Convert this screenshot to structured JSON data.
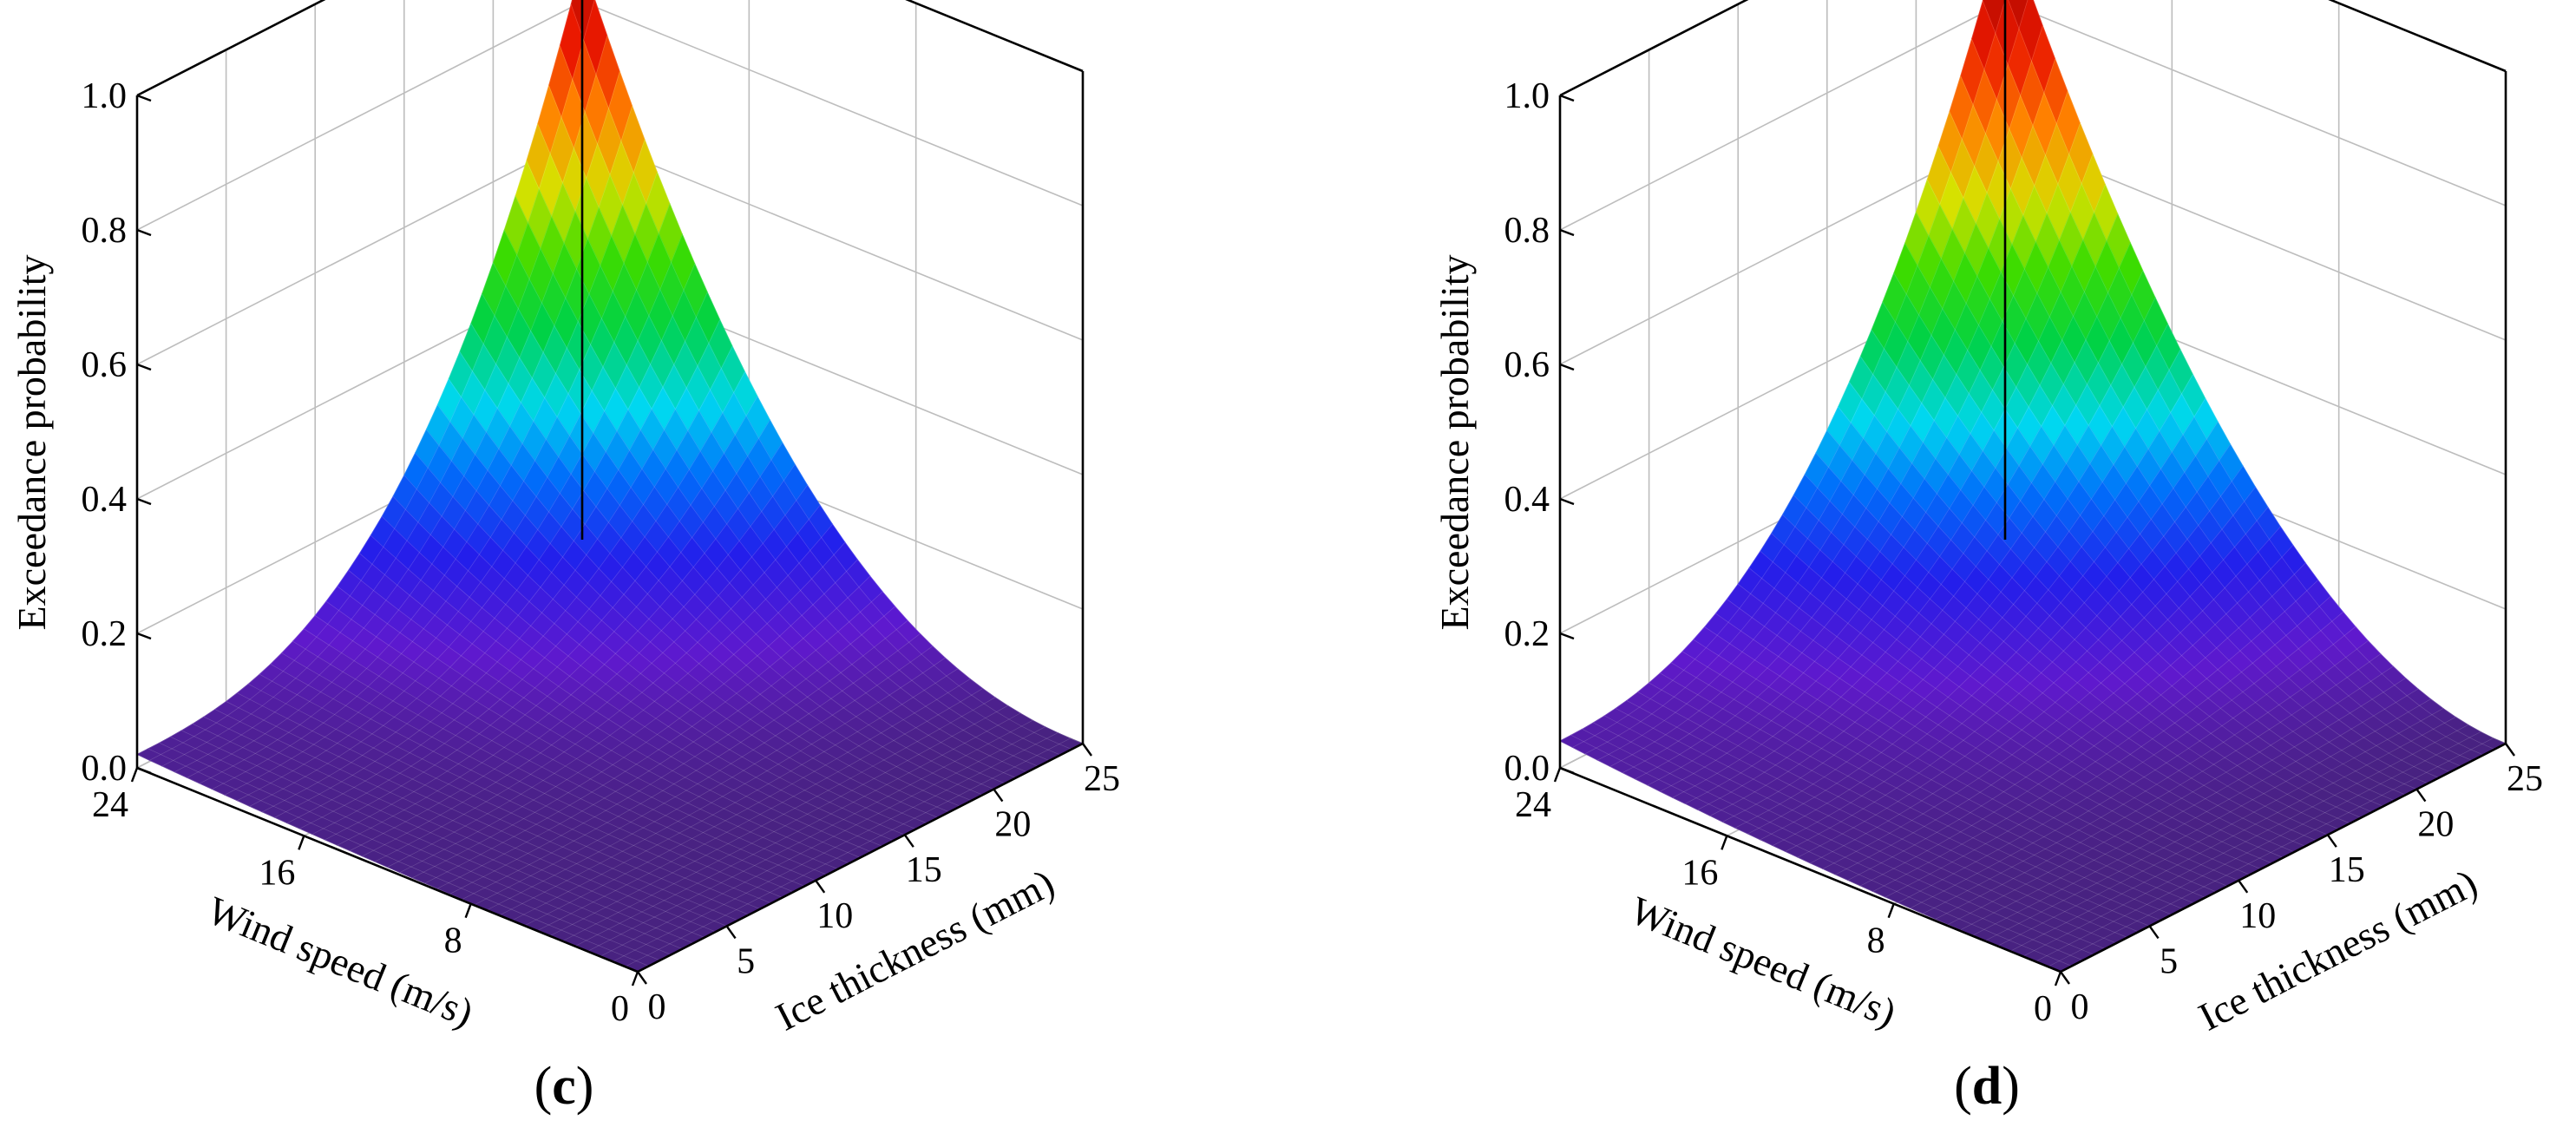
{
  "chart_data": [
    {
      "type": "surface",
      "panel_label": "(c)",
      "x_axis": {
        "label": "Wind speed (m/s)",
        "ticks": [
          "0",
          "8",
          "16",
          "24"
        ],
        "range": [
          0,
          24
        ]
      },
      "y_axis": {
        "label": "Ice thickness (mm)",
        "ticks": [
          "0",
          "5",
          "10",
          "15",
          "20",
          "25"
        ],
        "range": [
          0,
          25
        ]
      },
      "z_axis": {
        "label": "Exceedance probability",
        "ticks": [
          "0.0",
          "0.2",
          "0.4",
          "0.6",
          "0.8",
          "1.0"
        ],
        "range": [
          0,
          1
        ]
      },
      "colormap": "rainbow (violet-blue-cyan-green-yellow-orange-red)",
      "grid": true,
      "surface": {
        "description": "exceedance probability rising from 0 at low wind speed / low ice thickness to a peak at maximum wind speed and ice thickness",
        "corner_values": {
          "ws0_ice0": 0.0,
          "ws24_ice0": 0.02,
          "ws0_ice25": 0.0,
          "ws24_ice25": 0.86
        },
        "exponent_wind": 2.3,
        "exponent_ice": 2.7
      }
    },
    {
      "type": "surface",
      "panel_label": "(d)",
      "x_axis": {
        "label": "Wind speed (m/s)",
        "ticks": [
          "0",
          "8",
          "16",
          "24"
        ],
        "range": [
          0,
          24
        ]
      },
      "y_axis": {
        "label": "Ice thickness (mm)",
        "ticks": [
          "0",
          "5",
          "10",
          "15",
          "20",
          "25"
        ],
        "range": [
          0,
          25
        ]
      },
      "z_axis": {
        "label": "Exceedance probability",
        "ticks": [
          "0.0",
          "0.2",
          "0.4",
          "0.6",
          "0.8",
          "1.0"
        ],
        "range": [
          0,
          1
        ]
      },
      "colormap": "rainbow (violet-blue-cyan-green-yellow-orange-red)",
      "grid": true,
      "surface": {
        "description": "exceedance probability rising from 0 at low wind speed / low ice thickness to a peak at maximum wind speed and ice thickness",
        "corner_values": {
          "ws0_ice0": 0.0,
          "ws24_ice0": 0.04,
          "ws0_ice25": 0.0,
          "ws24_ice25": 0.92
        },
        "exponent_wind": 2.0,
        "exponent_ice": 2.4
      }
    }
  ]
}
